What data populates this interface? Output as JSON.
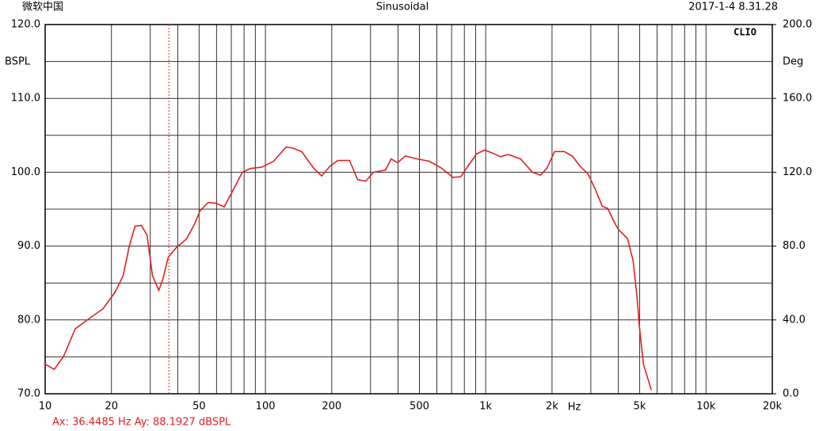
{
  "chart_data": {
    "type": "line",
    "header_left": "微软中国",
    "title": "Sinusoidal",
    "header_right": "2017-1-4 8.31.28",
    "brand": "CLIO",
    "ylabel": "BSPL",
    "y2label": "Deg",
    "xlabel": "Hz",
    "cursor": {
      "label": "Ax: 36.4485 Hz  Ay: 88.1927 dBSPL",
      "x": 36.4485,
      "color": "#e02020"
    },
    "log_x": true,
    "grid": true,
    "xlim": [
      10,
      20000
    ],
    "ylim": [
      70,
      120
    ],
    "y2lim": [
      0,
      200
    ],
    "xticks": [
      10,
      20,
      50,
      100,
      200,
      500,
      {
        "value": 1000,
        "label": "1k"
      },
      {
        "value": 2000,
        "label": "2k"
      },
      {
        "value": 5000,
        "label": "5k"
      },
      {
        "value": 10000,
        "label": "10k"
      },
      {
        "value": 20000,
        "label": "20k"
      }
    ],
    "x_minor_grid": [
      30,
      40,
      60,
      70,
      80,
      90,
      300,
      400,
      600,
      700,
      800,
      900,
      3000,
      4000,
      6000,
      7000,
      8000,
      9000
    ],
    "yticks": [
      {
        "value": 70,
        "label": "70.0"
      },
      {
        "value": 80,
        "label": "80.0"
      },
      {
        "value": 90,
        "label": "90.0"
      },
      {
        "value": 100,
        "label": "100.0"
      },
      {
        "value": 110,
        "label": "110.0"
      },
      {
        "value": 120,
        "label": "120.0"
      }
    ],
    "y_minor_grid": [
      75,
      85,
      95,
      105,
      115
    ],
    "y2ticks": [
      {
        "value": 0,
        "label": "0.0"
      },
      {
        "value": 40,
        "label": "40.0"
      },
      {
        "value": 80,
        "label": "80.0"
      },
      {
        "value": 120,
        "label": "120.0"
      },
      {
        "value": 160,
        "label": "160.0"
      },
      {
        "value": 200,
        "label": "200.0"
      }
    ],
    "x": [
      10,
      11,
      12.1,
      13.7,
      16.2,
      18.3,
      20.8,
      22.6,
      24.1,
      25.6,
      27.3,
      29,
      30.7,
      32.8,
      34.2,
      36.2,
      39.4,
      43.9,
      47.7,
      50.5,
      55,
      59.8,
      64.9,
      70.5,
      78.6,
      85.4,
      96.6,
      109,
      124,
      132,
      146,
      166,
      180,
      196,
      213,
      241,
      262,
      285,
      310,
      351,
      372,
      398,
      432,
      489,
      553,
      627,
      710,
      771,
      838,
      910,
      989,
      1074,
      1166,
      1267,
      1438,
      1631,
      1772,
      1893,
      2056,
      2274,
      2470,
      2682,
      2913,
      3164,
      3381,
      3583,
      3796,
      3989,
      4405,
      4669,
      4867,
      4990,
      5200,
      5650
    ],
    "series": [
      {
        "name": "SPL",
        "color": "#e02020",
        "values": [
          74,
          73.3,
          75,
          78.8,
          80.4,
          81.5,
          83.8,
          86,
          90,
          92.7,
          92.8,
          91.5,
          86,
          84,
          85.5,
          88.5,
          89.8,
          91,
          93,
          94.8,
          95.9,
          95.8,
          95.3,
          97.3,
          100,
          100.5,
          100.7,
          101.5,
          103.4,
          103.3,
          102.8,
          100.5,
          99.5,
          100.8,
          101.6,
          101.6,
          99,
          98.8,
          100,
          100.3,
          101.8,
          101.3,
          102.2,
          101.8,
          101.5,
          100.6,
          99.3,
          99.4,
          101,
          102.5,
          103,
          102.6,
          102.1,
          102.4,
          101.8,
          100,
          99.6,
          100.5,
          102.8,
          102.8,
          102.2,
          100.8,
          99.8,
          97.5,
          95.4,
          95.1,
          93.5,
          92.3,
          91,
          88,
          83,
          79,
          74,
          70.5
        ]
      }
    ]
  }
}
